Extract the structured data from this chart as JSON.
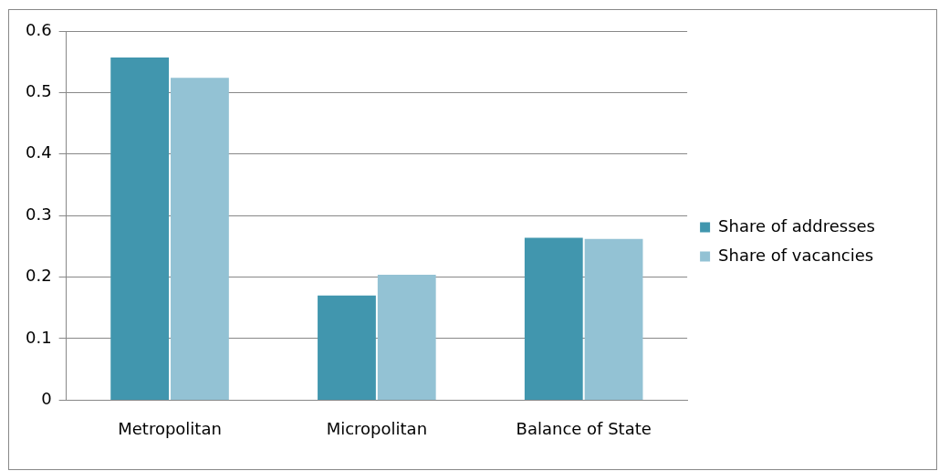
{
  "chart_data": {
    "type": "bar",
    "categories": [
      "Metropolitan",
      "Micropolitan",
      "Balance of State"
    ],
    "series": [
      {
        "name": "Share of addresses",
        "color": "#4196ae",
        "values": [
          0.557,
          0.17,
          0.264
        ]
      },
      {
        "name": "Share of vacancies",
        "color": "#93c2d4",
        "values": [
          0.524,
          0.204,
          0.262
        ]
      }
    ],
    "ylim": [
      0,
      0.6
    ],
    "yticks": [
      0,
      0.1,
      0.2,
      0.3,
      0.4,
      0.5,
      0.6
    ],
    "grid": "y",
    "legend": "right"
  }
}
